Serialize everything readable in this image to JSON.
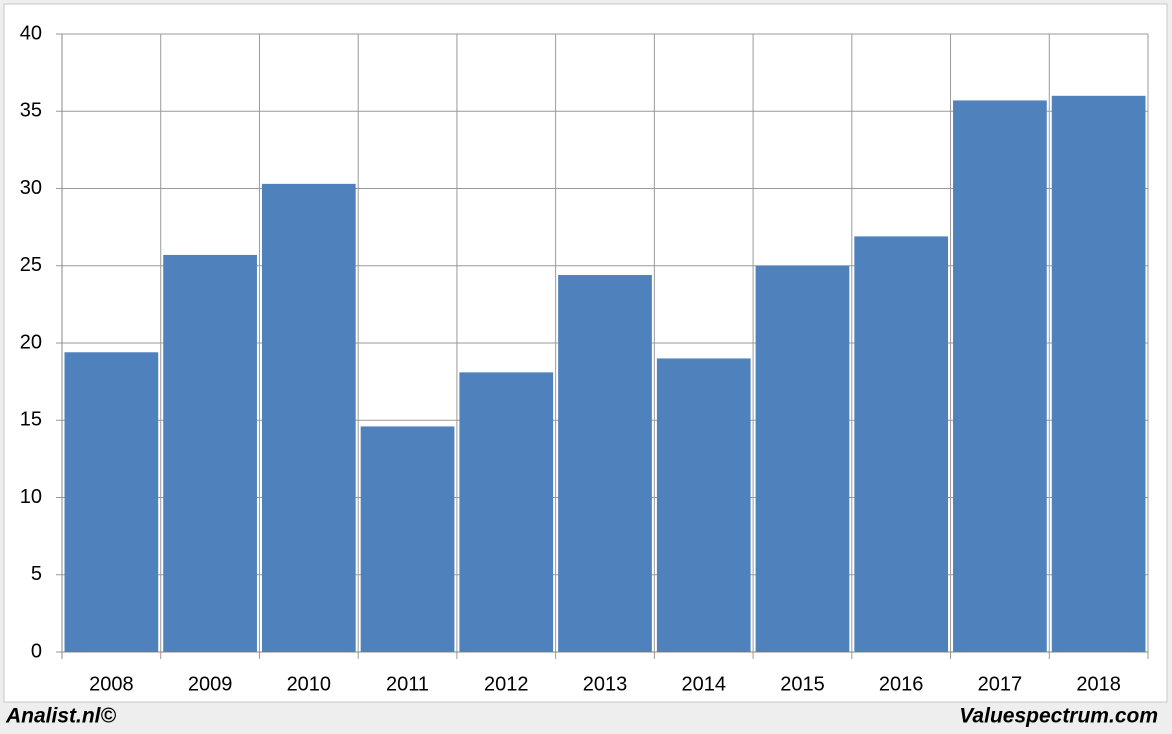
{
  "chart_data": {
    "type": "bar",
    "categories": [
      "2008",
      "2009",
      "2010",
      "2011",
      "2012",
      "2013",
      "2014",
      "2015",
      "2016",
      "2017",
      "2018"
    ],
    "values": [
      19.4,
      25.7,
      30.3,
      14.6,
      18.1,
      24.4,
      19.0,
      25.0,
      26.9,
      35.7,
      36.0
    ],
    "color": "#4f81bd",
    "ylim": [
      0,
      40
    ],
    "yticks": [
      0,
      5,
      10,
      15,
      20,
      25,
      30,
      35,
      40
    ],
    "grid": true
  },
  "footer": {
    "left": "Analist.nl©",
    "right": "Valuespectrum.com"
  }
}
